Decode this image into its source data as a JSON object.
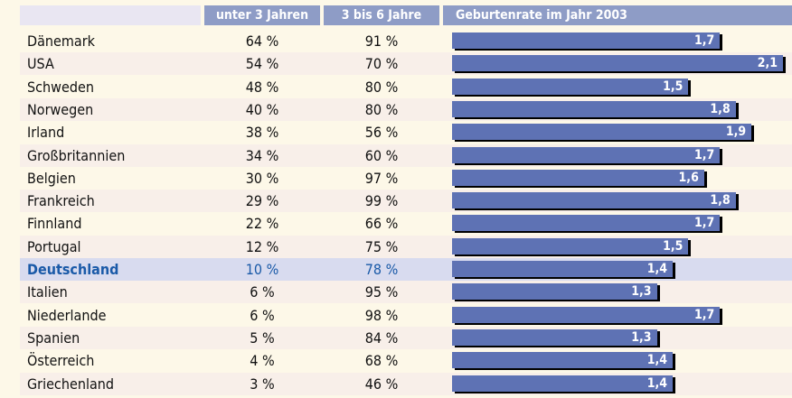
{
  "table": {
    "headers": [
      "unter 3 Jahren",
      "3 bis 6 Jahre",
      "Geburtenrate im Jahr 2003"
    ],
    "rows": [
      {
        "country": "Dänemark",
        "under3": "64 %",
        "age3to6": "91 %",
        "rate": 1.7,
        "rate_label": "1,7"
      },
      {
        "country": "USA",
        "under3": "54 %",
        "age3to6": "70 %",
        "rate": 2.1,
        "rate_label": "2,1"
      },
      {
        "country": "Schweden",
        "under3": "48 %",
        "age3to6": "80 %",
        "rate": 1.5,
        "rate_label": "1,5"
      },
      {
        "country": "Norwegen",
        "under3": "40 %",
        "age3to6": "80 %",
        "rate": 1.8,
        "rate_label": "1,8"
      },
      {
        "country": "Irland",
        "under3": "38 %",
        "age3to6": "56 %",
        "rate": 1.9,
        "rate_label": "1,9"
      },
      {
        "country": "Großbritannien",
        "under3": "34 %",
        "age3to6": "60 %",
        "rate": 1.7,
        "rate_label": "1,7"
      },
      {
        "country": "Belgien",
        "under3": "30 %",
        "age3to6": "97 %",
        "rate": 1.6,
        "rate_label": "1,6"
      },
      {
        "country": "Frankreich",
        "under3": "29 %",
        "age3to6": "99 %",
        "rate": 1.8,
        "rate_label": "1,8"
      },
      {
        "country": "Finnland",
        "under3": "22 %",
        "age3to6": "66 %",
        "rate": 1.7,
        "rate_label": "1,7"
      },
      {
        "country": "Portugal",
        "under3": "12 %",
        "age3to6": "75 %",
        "rate": 1.5,
        "rate_label": "1,5"
      },
      {
        "country": "Deutschland",
        "under3": "10 %",
        "age3to6": "78 %",
        "rate": 1.4,
        "rate_label": "1,4",
        "highlighted": true
      },
      {
        "country": "Italien",
        "under3": "6 %",
        "age3to6": "95 %",
        "rate": 1.3,
        "rate_label": "1,3"
      },
      {
        "country": "Niederlande",
        "under3": "6 %",
        "age3to6": "98 %",
        "rate": 1.7,
        "rate_label": "1,7"
      },
      {
        "country": "Spanien",
        "under3": "5 %",
        "age3to6": "84 %",
        "rate": 1.3,
        "rate_label": "1,3"
      },
      {
        "country": "Österreich",
        "under3": "4 %",
        "age3to6": "68 %",
        "rate": 1.4,
        "rate_label": "1,4"
      },
      {
        "country": "Griechenland",
        "under3": "3 %",
        "age3to6": "46 %",
        "rate": 1.4,
        "rate_label": "1,4"
      }
    ],
    "bar_color": "#5e72b4"
  }
}
